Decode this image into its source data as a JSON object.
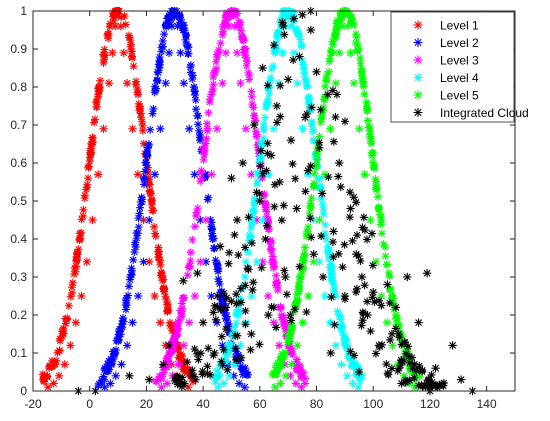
{
  "chart_data": {
    "type": "scatter",
    "title": "",
    "xlabel": "",
    "ylabel": "",
    "xlim": [
      -20,
      150
    ],
    "ylim": [
      0,
      1
    ],
    "x_ticks": [
      -20,
      0,
      20,
      40,
      60,
      80,
      100,
      120,
      140
    ],
    "y_ticks": [
      0,
      0.1,
      0.2,
      0.3,
      0.4,
      0.5,
      0.6,
      0.7,
      0.8,
      0.9,
      1
    ],
    "grid": false,
    "legend_position": "top-right",
    "marker": "asterisk",
    "series": [
      {
        "name": "Level 1",
        "color": "#ff0000",
        "style": "clean",
        "points": [
          [
            -14.7,
            0.01
          ],
          [
            -12.7,
            0.02
          ],
          [
            -10.8,
            0.04
          ],
          [
            -8.8,
            0.07
          ],
          [
            -6.8,
            0.12
          ],
          [
            -4.9,
            0.18
          ],
          [
            -2.9,
            0.25
          ],
          [
            -1.0,
            0.34
          ],
          [
            1.0,
            0.45
          ],
          [
            3.0,
            0.57
          ],
          [
            4.9,
            0.69
          ],
          [
            6.8,
            0.81
          ],
          [
            8.0,
            0.89
          ],
          [
            9.0,
            0.96
          ],
          [
            10.0,
            1.0
          ],
          [
            11.0,
            0.96
          ],
          [
            12.0,
            0.89
          ],
          [
            13.2,
            0.81
          ],
          [
            15.1,
            0.69
          ],
          [
            17.0,
            0.57
          ],
          [
            19.0,
            0.45
          ],
          [
            21.0,
            0.34
          ],
          [
            22.9,
            0.25
          ],
          [
            24.9,
            0.18
          ],
          [
            26.8,
            0.12
          ],
          [
            28.8,
            0.07
          ],
          [
            30.8,
            0.04
          ],
          [
            32.7,
            0.02
          ],
          [
            34.7,
            0.01
          ]
        ]
      },
      {
        "name": "Level 2",
        "color": "#0000ff",
        "style": "clean",
        "points": [
          [
            5.3,
            0.01
          ],
          [
            7.3,
            0.02
          ],
          [
            9.2,
            0.04
          ],
          [
            11.2,
            0.07
          ],
          [
            13.2,
            0.12
          ],
          [
            15.1,
            0.18
          ],
          [
            17.1,
            0.25
          ],
          [
            19.0,
            0.34
          ],
          [
            21.0,
            0.45
          ],
          [
            23.0,
            0.57
          ],
          [
            24.9,
            0.69
          ],
          [
            26.8,
            0.81
          ],
          [
            28.0,
            0.89
          ],
          [
            29.0,
            0.96
          ],
          [
            30.0,
            1.0
          ],
          [
            31.0,
            0.96
          ],
          [
            32.0,
            0.89
          ],
          [
            33.2,
            0.81
          ],
          [
            35.1,
            0.69
          ],
          [
            37.0,
            0.57
          ],
          [
            39.0,
            0.45
          ],
          [
            41.0,
            0.34
          ],
          [
            42.9,
            0.25
          ],
          [
            44.9,
            0.18
          ],
          [
            46.8,
            0.12
          ],
          [
            48.8,
            0.07
          ],
          [
            50.8,
            0.04
          ],
          [
            52.7,
            0.02
          ],
          [
            54.7,
            0.01
          ]
        ]
      },
      {
        "name": "Level 3",
        "color": "#ff00ff",
        "style": "clean",
        "points": [
          [
            25.3,
            0.01
          ],
          [
            27.3,
            0.02
          ],
          [
            29.2,
            0.04
          ],
          [
            31.2,
            0.07
          ],
          [
            33.2,
            0.12
          ],
          [
            35.1,
            0.18
          ],
          [
            37.1,
            0.25
          ],
          [
            39.0,
            0.34
          ],
          [
            41.0,
            0.45
          ],
          [
            43.0,
            0.57
          ],
          [
            44.9,
            0.69
          ],
          [
            46.8,
            0.81
          ],
          [
            48.0,
            0.89
          ],
          [
            49.0,
            0.96
          ],
          [
            50.0,
            1.0
          ],
          [
            51.0,
            0.96
          ],
          [
            52.0,
            0.89
          ],
          [
            53.2,
            0.81
          ],
          [
            55.1,
            0.69
          ],
          [
            57.0,
            0.57
          ],
          [
            59.0,
            0.45
          ],
          [
            61.0,
            0.34
          ],
          [
            62.9,
            0.25
          ],
          [
            64.9,
            0.18
          ],
          [
            66.8,
            0.12
          ],
          [
            68.8,
            0.07
          ],
          [
            70.8,
            0.04
          ],
          [
            72.7,
            0.02
          ],
          [
            74.7,
            0.01
          ]
        ]
      },
      {
        "name": "Level 4",
        "color": "#00ffff",
        "style": "clean",
        "points": [
          [
            45.3,
            0.01
          ],
          [
            47.3,
            0.02
          ],
          [
            49.2,
            0.04
          ],
          [
            51.2,
            0.07
          ],
          [
            53.2,
            0.12
          ],
          [
            55.1,
            0.18
          ],
          [
            57.1,
            0.25
          ],
          [
            59.0,
            0.34
          ],
          [
            61.0,
            0.45
          ],
          [
            63.0,
            0.57
          ],
          [
            64.9,
            0.69
          ],
          [
            66.8,
            0.81
          ],
          [
            68.0,
            0.89
          ],
          [
            69.0,
            0.96
          ],
          [
            70.0,
            1.0
          ],
          [
            71.0,
            0.96
          ],
          [
            72.0,
            0.89
          ],
          [
            73.2,
            0.81
          ],
          [
            75.1,
            0.69
          ],
          [
            77.0,
            0.57
          ],
          [
            79.0,
            0.45
          ],
          [
            81.0,
            0.34
          ],
          [
            82.9,
            0.25
          ],
          [
            84.9,
            0.18
          ],
          [
            86.8,
            0.12
          ],
          [
            88.8,
            0.07
          ],
          [
            90.8,
            0.04
          ],
          [
            92.7,
            0.02
          ],
          [
            94.7,
            0.01
          ]
        ]
      },
      {
        "name": "Level 5",
        "color": "#00ff00",
        "style": "clean",
        "points": [
          [
            65.3,
            0.01
          ],
          [
            67.3,
            0.02
          ],
          [
            69.2,
            0.04
          ],
          [
            71.2,
            0.07
          ],
          [
            73.2,
            0.12
          ],
          [
            75.1,
            0.18
          ],
          [
            77.1,
            0.25
          ],
          [
            79.0,
            0.34
          ],
          [
            81.0,
            0.45
          ],
          [
            83.0,
            0.57
          ],
          [
            84.9,
            0.69
          ],
          [
            86.8,
            0.81
          ],
          [
            88.0,
            0.89
          ],
          [
            89.0,
            0.96
          ],
          [
            90.0,
            1.0
          ],
          [
            91.0,
            0.96
          ],
          [
            92.0,
            0.89
          ],
          [
            93.2,
            0.81
          ],
          [
            95.1,
            0.69
          ],
          [
            97.0,
            0.57
          ],
          [
            99.0,
            0.45
          ],
          [
            101.0,
            0.34
          ],
          [
            102.9,
            0.25
          ],
          [
            104.9,
            0.18
          ],
          [
            106.8,
            0.12
          ],
          [
            108.8,
            0.07
          ],
          [
            110.8,
            0.04
          ],
          [
            112.7,
            0.02
          ],
          [
            114.7,
            0.01
          ]
        ]
      },
      {
        "name": "Integrated Cloud",
        "color": "#000000",
        "style": "scattered",
        "points": [
          [
            33,
            0.29
          ],
          [
            28,
            0.12
          ],
          [
            36,
            0.04
          ],
          [
            40,
            0.18
          ],
          [
            38,
            0.31
          ],
          [
            44,
            0.1
          ],
          [
            46,
            0.38
          ],
          [
            48,
            0.22
          ],
          [
            50,
            0.56
          ],
          [
            52,
            0.45
          ],
          [
            54,
            0.6
          ],
          [
            56,
            0.32
          ],
          [
            58,
            0.7
          ],
          [
            60,
            0.5
          ],
          [
            61,
            0.85
          ],
          [
            62,
            0.4
          ],
          [
            64,
            0.62
          ],
          [
            65,
            0.91
          ],
          [
            66,
            0.75
          ],
          [
            67,
            0.55
          ],
          [
            68,
            0.97
          ],
          [
            69,
            0.3
          ],
          [
            70,
            0.82
          ],
          [
            71,
            0.66
          ],
          [
            72,
            0.98
          ],
          [
            73,
            0.48
          ],
          [
            74,
            0.88
          ],
          [
            75,
            0.99
          ],
          [
            76,
            0.72
          ],
          [
            77,
            0.58
          ],
          [
            78,
            0.95
          ],
          [
            79,
            0.36
          ],
          [
            80,
            0.84
          ],
          [
            81,
            0.64
          ],
          [
            82,
            0.52
          ],
          [
            84,
            0.78
          ],
          [
            86,
            0.42
          ],
          [
            88,
            0.6
          ],
          [
            90,
            0.25
          ],
          [
            92,
            0.48
          ],
          [
            94,
            0.36
          ],
          [
            96,
            0.3
          ],
          [
            98,
            0.2
          ],
          [
            100,
            0.26
          ],
          [
            102,
            0.12
          ],
          [
            105,
            0.28
          ],
          [
            108,
            0.22
          ],
          [
            110,
            0.08
          ],
          [
            112,
            0.3
          ],
          [
            116,
            0.18
          ],
          [
            119,
            0.31
          ],
          [
            122,
            0.06
          ],
          [
            128,
            0.12
          ],
          [
            131,
            0.03
          ],
          [
            -4,
            0.0
          ],
          [
            2,
            0.0
          ],
          [
            14,
            0.04
          ],
          [
            21,
            0.03
          ],
          [
            26,
            0.07
          ],
          [
            45,
            0.25
          ],
          [
            57,
            0.15
          ],
          [
            63,
            0.2
          ],
          [
            85,
            0.1
          ],
          [
            95,
            0.05
          ],
          [
            110,
            0.02
          ],
          [
            120,
            0.0
          ],
          [
            135,
            0.0
          ]
        ]
      }
    ]
  }
}
